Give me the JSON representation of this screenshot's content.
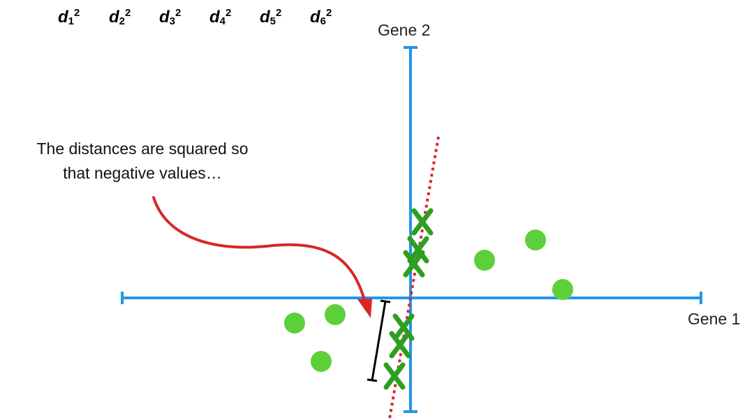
{
  "distance_terms": [
    {
      "base": "d",
      "sub": "1",
      "sup": "2"
    },
    {
      "base": "d",
      "sub": "2",
      "sup": "2"
    },
    {
      "base": "d",
      "sub": "3",
      "sup": "2"
    },
    {
      "base": "d",
      "sub": "4",
      "sup": "2"
    },
    {
      "base": "d",
      "sub": "5",
      "sup": "2"
    },
    {
      "base": "d",
      "sub": "6",
      "sup": "2"
    }
  ],
  "axes": {
    "x_label": "Gene 1",
    "y_label": "Gene 2"
  },
  "annotation": {
    "line1": "The distances are squared so",
    "line2": "that negative values…"
  },
  "colors": {
    "axis": "#2196e8",
    "point": "#5cd03a",
    "projection_x": "#2e9e1e",
    "fit_line": "#d62828",
    "arrow": "#d62828",
    "bracket": "#000000"
  }
}
